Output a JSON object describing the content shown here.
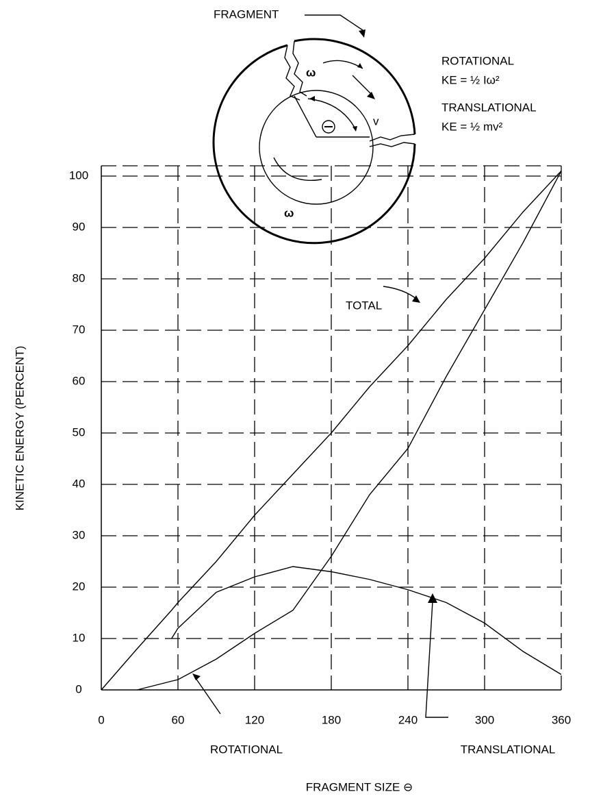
{
  "chart_data": {
    "type": "line",
    "ylabel": "KINETIC ENERGY (PERCENT)",
    "xlabel": "FRAGMENT SIZE ⊖",
    "x": [
      0,
      28,
      55,
      60,
      90,
      120,
      150,
      180,
      210,
      240,
      270,
      300,
      330,
      360
    ],
    "series": [
      {
        "name": "TOTAL",
        "color": "#000000",
        "values": [
          0,
          8,
          15.5,
          17,
          25,
          34,
          42,
          50,
          59,
          67,
          76,
          84,
          93,
          101
        ]
      },
      {
        "name": "ROTATIONAL",
        "color": "#000000",
        "values": [
          null,
          0,
          1.7,
          2,
          6,
          11,
          15.5,
          26,
          38,
          47,
          61,
          74,
          87,
          101
        ]
      },
      {
        "name": "TRANSLATIONAL",
        "color": "#000000",
        "values": [
          null,
          null,
          10,
          12,
          19,
          22,
          24,
          23,
          21.5,
          19.5,
          17,
          13,
          7.5,
          3
        ]
      }
    ],
    "xlim": [
      0,
      360
    ],
    "ylim": [
      0,
      102
    ],
    "xticks": [
      0,
      60,
      120,
      180,
      240,
      300,
      360
    ],
    "yticks": [
      0,
      10,
      20,
      30,
      40,
      50,
      60,
      70,
      80,
      90,
      100
    ],
    "grid": true,
    "bold_gridline": 60,
    "annotations": {
      "fragment": "FRAGMENT",
      "omega_top": "ω",
      "omega_bottom": "ω",
      "v": "v",
      "rotational_title": "ROTATIONAL",
      "rotational_formula": "KE = ½ Iω²",
      "translational_title": "TRANSLATIONAL",
      "translational_formula": "KE = ½ mv²"
    }
  }
}
